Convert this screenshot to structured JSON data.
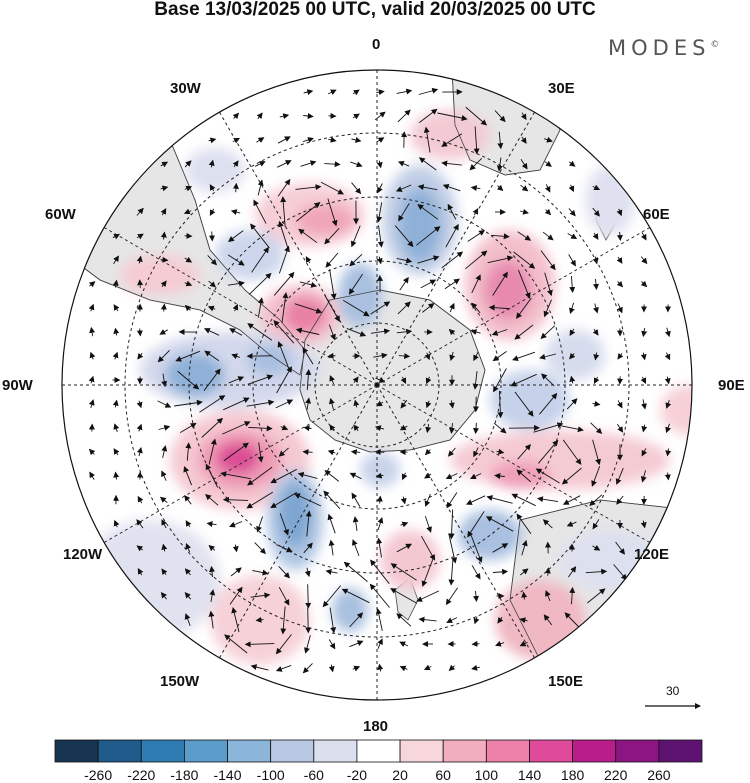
{
  "title": "Base 13/03/2025 00 UTC, valid 20/03/2025 00 UTC",
  "brand": "MODES",
  "brand_mark": "©",
  "longitude_labels": {
    "lon_0": "0",
    "lon_30e": "30E",
    "lon_60e": "60E",
    "lon_90e": "90E",
    "lon_120e": "120E",
    "lon_150e": "150E",
    "lon_180": "180",
    "lon_150w": "150W",
    "lon_120w": "120W",
    "lon_90w": "90W",
    "lon_60w": "60W",
    "lon_30w": "30W"
  },
  "reference_vector": {
    "value": "30"
  },
  "colorbar": {
    "ticks": [
      "-260",
      "-220",
      "-180",
      "-140",
      "-100",
      "-60",
      "-20",
      "20",
      "60",
      "100",
      "140",
      "180",
      "220",
      "260"
    ],
    "colors": [
      "#173552",
      "#1f5a8a",
      "#2f7cb3",
      "#5b9cca",
      "#8cb5da",
      "#b8c9e3",
      "#dcdfee",
      "#ffffff",
      "#f7d7dc",
      "#f1aebf",
      "#ec80a9",
      "#df4a9a",
      "#b91d8a",
      "#8c1583",
      "#5e1373"
    ]
  },
  "map_colors": {
    "land": "#e6e6e6",
    "coast": "#444444",
    "grid": "#222222"
  }
}
